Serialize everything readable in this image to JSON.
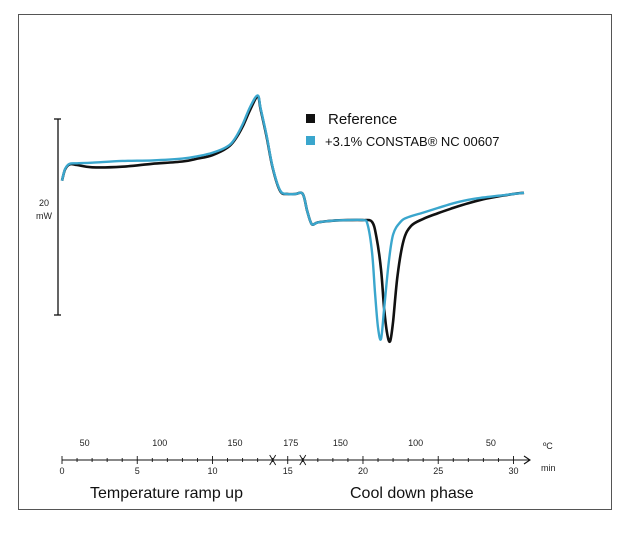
{
  "chart_data": {
    "type": "line",
    "title": "",
    "xlabel": "",
    "ylabel": "",
    "x_unit": "min",
    "x_ticks": [
      0,
      5,
      10,
      15,
      20,
      25,
      30
    ],
    "xlim": [
      0,
      30.7
    ],
    "temperature_unit": "ºC",
    "temperature_ticks": [
      {
        "label": "50",
        "time": 1.5
      },
      {
        "label": "100",
        "time": 6.5
      },
      {
        "label": "150",
        "time": 11.5
      },
      {
        "label": "175",
        "time": 15.2
      },
      {
        "label": "150",
        "time": 18.5
      },
      {
        "label": "100",
        "time": 23.5
      },
      {
        "label": "50",
        "time": 28.5
      }
    ],
    "scale_bar": {
      "value": "20",
      "unit": "mW"
    },
    "phases": [
      {
        "label": "Temperature ramp up",
        "from": 0,
        "to": 14.0
      },
      {
        "label": "Cool down phase",
        "from": 16.0,
        "to": 30.7
      }
    ],
    "legend": {
      "position": "right"
    },
    "series": [
      {
        "name": "Reference",
        "color": "#111111",
        "x": [
          0,
          0.2,
          0.5,
          1,
          2,
          4,
          6,
          8,
          9,
          10,
          11,
          11.5,
          12,
          12.5,
          13,
          13.2,
          13.6,
          14.0,
          14.5,
          15.0,
          15.5,
          16.0,
          16.3,
          16.6,
          17,
          18,
          19,
          20,
          20.6,
          20.9,
          21.2,
          21.4,
          21.6,
          21.8,
          22.0,
          22.3,
          22.7,
          23.2,
          24,
          25,
          26,
          27,
          28,
          29,
          30,
          30.7
        ],
        "y": [
          2.3,
          4.2,
          5.1,
          5.0,
          4.6,
          4.7,
          5.2,
          5.6,
          6.1,
          6.7,
          8.0,
          9.4,
          11.6,
          14.5,
          16.8,
          14.6,
          9.8,
          4.5,
          0.5,
          0.0,
          0.0,
          0.0,
          -3.0,
          -5.2,
          -4.9,
          -4.6,
          -4.5,
          -4.5,
          -4.8,
          -7.5,
          -13.0,
          -19.5,
          -24.0,
          -25.4,
          -22.0,
          -14.0,
          -8.0,
          -5.5,
          -4.3,
          -3.3,
          -2.4,
          -1.6,
          -0.9,
          -0.4,
          0.0,
          0.2
        ]
      },
      {
        "name": "+3.1% CONSTAB® NC 00607",
        "color": "#3aa6cd",
        "x": [
          0,
          0.2,
          0.5,
          1,
          2,
          4,
          6,
          8,
          9,
          10,
          11,
          11.5,
          12,
          12.5,
          13,
          13.2,
          13.6,
          14.0,
          14.5,
          15.0,
          15.5,
          16.0,
          16.3,
          16.6,
          17,
          18,
          19,
          20,
          20.3,
          20.6,
          20.8,
          21.0,
          21.2,
          21.4,
          21.7,
          22.0,
          22.5,
          23.0,
          24,
          25,
          26,
          27,
          28,
          29,
          30,
          30.7
        ],
        "y": [
          2.3,
          4.3,
          5.2,
          5.3,
          5.4,
          5.7,
          5.8,
          6.1,
          6.5,
          7.1,
          8.2,
          9.6,
          12.0,
          15.0,
          17.0,
          14.8,
          10.0,
          4.6,
          0.6,
          0.0,
          0.0,
          0.0,
          -3.0,
          -5.2,
          -4.9,
          -4.6,
          -4.5,
          -4.5,
          -5.2,
          -10.0,
          -17.0,
          -23.0,
          -25.0,
          -20.0,
          -12.0,
          -7.0,
          -4.8,
          -4.0,
          -3.2,
          -2.4,
          -1.6,
          -1.0,
          -0.6,
          -0.3,
          0.0,
          0.2
        ]
      }
    ]
  }
}
